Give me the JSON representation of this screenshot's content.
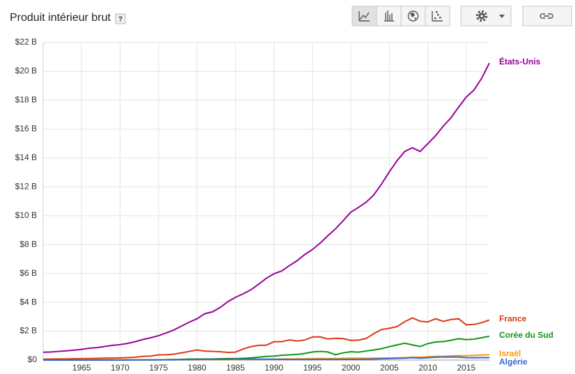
{
  "chart_data": {
    "type": "line",
    "title": "Produit intérieur brut",
    "help": "?",
    "x": [
      1960,
      1961,
      1962,
      1963,
      1964,
      1965,
      1966,
      1967,
      1968,
      1969,
      1970,
      1971,
      1972,
      1973,
      1974,
      1975,
      1976,
      1977,
      1978,
      1979,
      1980,
      1981,
      1982,
      1983,
      1984,
      1985,
      1986,
      1987,
      1988,
      1989,
      1990,
      1991,
      1992,
      1993,
      1994,
      1995,
      1996,
      1997,
      1998,
      1999,
      2000,
      2001,
      2002,
      2003,
      2004,
      2005,
      2006,
      2007,
      2008,
      2009,
      2010,
      2011,
      2012,
      2013,
      2014,
      2015,
      2016,
      2017,
      2018
    ],
    "xlim": [
      1960,
      2018
    ],
    "xticks": [
      1965,
      1970,
      1975,
      1980,
      1985,
      1990,
      1995,
      2000,
      2005,
      2010,
      2015
    ],
    "ylim": [
      0,
      22
    ],
    "yticks": [
      {
        "value": 0,
        "label": "$0"
      },
      {
        "value": 2,
        "label": "$2 B"
      },
      {
        "value": 4,
        "label": "$4 B"
      },
      {
        "value": 6,
        "label": "$6 B"
      },
      {
        "value": 8,
        "label": "$8 B"
      },
      {
        "value": 10,
        "label": "$10 B"
      },
      {
        "value": 12,
        "label": "$12 B"
      },
      {
        "value": 14,
        "label": "$14 B"
      },
      {
        "value": 16,
        "label": "$16 B"
      },
      {
        "value": 18,
        "label": "$18 B"
      },
      {
        "value": 20,
        "label": "$20 B"
      },
      {
        "value": 22,
        "label": "$22 B"
      }
    ],
    "grid": true,
    "series": [
      {
        "name": "États-Unis",
        "color": "#990099",
        "values": [
          0.54,
          0.56,
          0.6,
          0.64,
          0.69,
          0.74,
          0.82,
          0.86,
          0.94,
          1.02,
          1.07,
          1.16,
          1.28,
          1.43,
          1.55,
          1.69,
          1.88,
          2.09,
          2.36,
          2.63,
          2.86,
          3.21,
          3.34,
          3.64,
          4.04,
          4.35,
          4.59,
          4.87,
          5.25,
          5.66,
          5.98,
          6.17,
          6.54,
          6.88,
          7.31,
          7.66,
          8.1,
          8.61,
          9.09,
          9.66,
          10.25,
          10.58,
          10.94,
          11.46,
          12.21,
          13.04,
          13.81,
          14.45,
          14.71,
          14.45,
          14.99,
          15.54,
          16.2,
          16.78,
          17.52,
          18.22,
          18.71,
          19.52,
          20.58
        ]
      },
      {
        "name": "France",
        "color": "#dc3912",
        "values": [
          0.06,
          0.07,
          0.08,
          0.08,
          0.09,
          0.1,
          0.11,
          0.12,
          0.13,
          0.14,
          0.15,
          0.17,
          0.2,
          0.26,
          0.28,
          0.36,
          0.37,
          0.41,
          0.5,
          0.6,
          0.7,
          0.62,
          0.6,
          0.58,
          0.53,
          0.55,
          0.77,
          0.93,
          1.02,
          1.03,
          1.27,
          1.27,
          1.4,
          1.32,
          1.39,
          1.6,
          1.61,
          1.46,
          1.51,
          1.49,
          1.36,
          1.38,
          1.5,
          1.84,
          2.12,
          2.2,
          2.32,
          2.66,
          2.92,
          2.69,
          2.64,
          2.86,
          2.68,
          2.81,
          2.86,
          2.44,
          2.47,
          2.59,
          2.78
        ]
      },
      {
        "name": "Corée du Sud",
        "color": "#109618",
        "values": [
          0,
          0,
          0,
          0,
          0,
          0,
          0,
          0.01,
          0.01,
          0.01,
          0.01,
          0.01,
          0.01,
          0.01,
          0.02,
          0.02,
          0.03,
          0.04,
          0.05,
          0.07,
          0.07,
          0.07,
          0.08,
          0.09,
          0.1,
          0.1,
          0.12,
          0.15,
          0.2,
          0.25,
          0.28,
          0.33,
          0.36,
          0.39,
          0.46,
          0.56,
          0.6,
          0.56,
          0.37,
          0.5,
          0.58,
          0.55,
          0.63,
          0.7,
          0.79,
          0.93,
          1.05,
          1.17,
          1.05,
          0.94,
          1.14,
          1.25,
          1.28,
          1.37,
          1.48,
          1.42,
          1.45,
          1.55,
          1.65
        ]
      },
      {
        "name": "Israël",
        "color": "#ff9900",
        "values": [
          0,
          0,
          0,
          0,
          0,
          0.01,
          0.01,
          0.01,
          0.01,
          0.01,
          0.01,
          0.01,
          0.01,
          0.02,
          0.02,
          0.02,
          0.02,
          0.02,
          0.02,
          0.02,
          0.02,
          0.03,
          0.03,
          0.03,
          0.03,
          0.03,
          0.04,
          0.04,
          0.05,
          0.05,
          0.06,
          0.07,
          0.08,
          0.08,
          0.09,
          0.1,
          0.11,
          0.11,
          0.11,
          0.12,
          0.13,
          0.13,
          0.12,
          0.13,
          0.13,
          0.14,
          0.15,
          0.17,
          0.2,
          0.2,
          0.23,
          0.26,
          0.26,
          0.29,
          0.31,
          0.3,
          0.32,
          0.35,
          0.37
        ]
      },
      {
        "name": "Algérie",
        "color": "#3366cc",
        "values": [
          0,
          0,
          0,
          0,
          0,
          0,
          0,
          0,
          0,
          0,
          0,
          0,
          0.01,
          0.01,
          0.01,
          0.02,
          0.02,
          0.02,
          0.03,
          0.03,
          0.04,
          0.04,
          0.04,
          0.05,
          0.05,
          0.06,
          0.06,
          0.07,
          0.06,
          0.06,
          0.06,
          0.05,
          0.05,
          0.05,
          0.04,
          0.04,
          0.05,
          0.05,
          0.05,
          0.05,
          0.05,
          0.05,
          0.06,
          0.07,
          0.09,
          0.1,
          0.12,
          0.13,
          0.17,
          0.14,
          0.16,
          0.2,
          0.21,
          0.21,
          0.21,
          0.17,
          0.16,
          0.17,
          0.17
        ]
      }
    ]
  }
}
